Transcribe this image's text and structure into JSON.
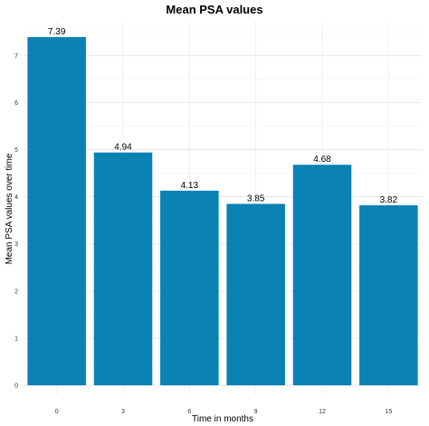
{
  "chart_data": {
    "type": "bar",
    "title": "Mean PSA values",
    "xlabel": "Time in months",
    "ylabel": "Mean PSA values over time",
    "categories": [
      "0",
      "3",
      "6",
      "9",
      "12",
      "15"
    ],
    "values": [
      7.39,
      4.94,
      4.13,
      3.85,
      4.68,
      3.82
    ],
    "data_labels": [
      "7.39",
      "4.94",
      "4.13",
      "3.85",
      "4.68",
      "3.82"
    ],
    "yticks": [
      0,
      1,
      2,
      3,
      4,
      5,
      6,
      7
    ],
    "ylim": [
      0,
      7.75
    ],
    "bar_color": "#0a82b4",
    "grid": true,
    "legend": "none"
  }
}
